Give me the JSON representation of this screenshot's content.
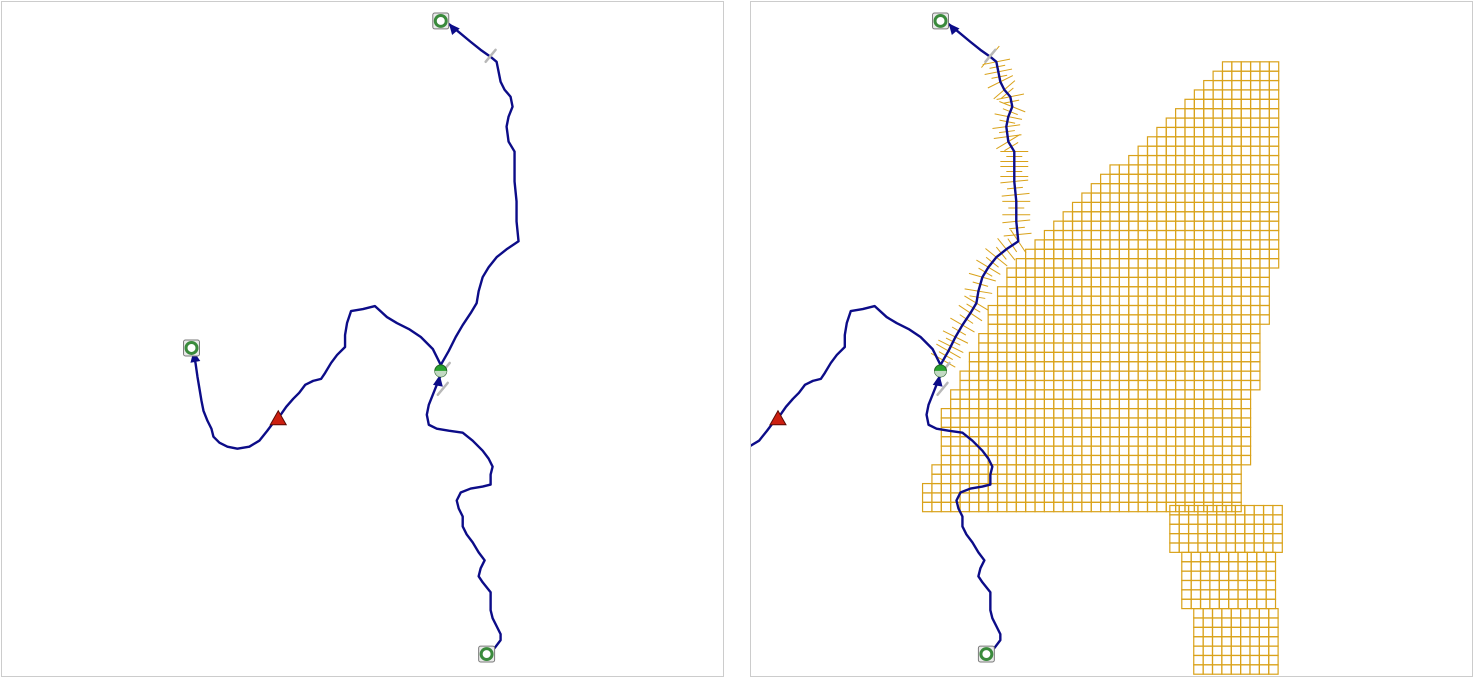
{
  "panels": [
    {
      "id": "left",
      "shows_grid": false
    },
    {
      "id": "right",
      "shows_grid": true
    }
  ],
  "colors": {
    "route": "#0c0c88",
    "grid": "#d9a21a",
    "junction": "#29a12e",
    "triangle_marker": "#cc1f10",
    "stop_marker": "#3a8a3c",
    "panel_border": "#cccccc",
    "tick": "#b8b8b8"
  },
  "markers": [
    {
      "type": "stop",
      "icon": "ring-stop-icon"
    },
    {
      "type": "stop",
      "icon": "ring-stop-icon"
    },
    {
      "type": "stop",
      "icon": "ring-stop-icon"
    },
    {
      "type": "junction",
      "icon": "junction-disc-icon"
    },
    {
      "type": "event",
      "icon": "red-triangle-icon"
    }
  ]
}
